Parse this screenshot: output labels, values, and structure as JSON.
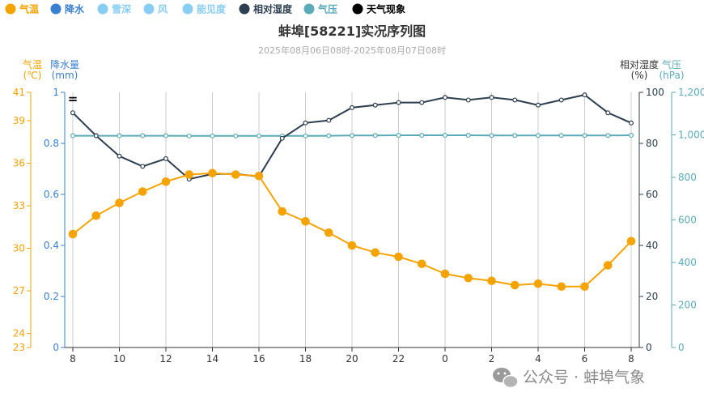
{
  "chart_data": {
    "type": "line",
    "title": "蚌埠[58221]实况序列图",
    "subtitle": "2025年08月06日08时-2025年08月07日08时",
    "legend": {
      "placement": "top-left",
      "items": [
        {
          "name": "气温",
          "color": "#f5a300",
          "icon": "circle-icon"
        },
        {
          "name": "降水",
          "color": "#3a7fd0",
          "icon": "circle-icon"
        },
        {
          "name": "雪深",
          "color": "#88cdf4",
          "icon": "circle-icon"
        },
        {
          "name": "风",
          "color": "#88cdf4",
          "icon": "circle-icon"
        },
        {
          "name": "能见度",
          "color": "#88cdf4",
          "icon": "circle-icon"
        },
        {
          "name": "相对湿度",
          "color": "#2c3e50",
          "icon": "circle-icon"
        },
        {
          "name": "气压",
          "color": "#5aaab8",
          "icon": "circle-icon"
        },
        {
          "name": "天气现象",
          "color": "#000000",
          "icon": "circle-icon"
        }
      ]
    },
    "x_ticks": [
      "8",
      "10",
      "12",
      "14",
      "16",
      "18",
      "20",
      "22",
      "0",
      "2",
      "4",
      "6",
      "8"
    ],
    "axes": {
      "temperature": {
        "name": "气温",
        "unit": "(℃)",
        "color": "#f5a300",
        "ticks": [
          "23",
          "24",
          "27",
          "30",
          "33",
          "36",
          "39",
          "41"
        ],
        "range": [
          23,
          41
        ]
      },
      "precipitation": {
        "name": "降水量",
        "unit": "(mm)",
        "color": "#3a7fd0",
        "ticks": [
          "0",
          "0.2",
          "0.4",
          "0.6",
          "0.8",
          "1"
        ],
        "range": [
          0,
          1
        ]
      },
      "humidity": {
        "name": "相对湿度",
        "unit": "(%)",
        "color": "#333333",
        "ticks": [
          "0",
          "20",
          "40",
          "60",
          "80",
          "100"
        ],
        "range": [
          0,
          100
        ]
      },
      "pressure": {
        "name": "气压",
        "unit": "(hPa)",
        "color": "#5aaab8",
        "ticks": [
          "0",
          "200",
          "400",
          "600",
          "800",
          "1,000",
          "1,200"
        ],
        "range": [
          0,
          1200
        ]
      }
    },
    "series": [
      {
        "name": "气温",
        "axis": "temperature",
        "color": "#f5a300",
        "values": [
          31.0,
          32.3,
          33.2,
          34.0,
          34.7,
          35.2,
          35.3,
          35.2,
          35.1,
          32.6,
          31.9,
          31.1,
          30.2,
          29.7,
          29.4,
          28.9,
          28.2,
          27.9,
          27.7,
          27.4,
          27.5,
          27.3,
          27.3,
          28.8,
          30.5
        ]
      },
      {
        "name": "相对湿度",
        "axis": "humidity",
        "color": "#2c3e50",
        "values": [
          92,
          83,
          75,
          71,
          74,
          66,
          68,
          68,
          67,
          82,
          88,
          89,
          94,
          95,
          96,
          96,
          98,
          97,
          98,
          97,
          95,
          97,
          99,
          92,
          88
        ]
      },
      {
        "name": "气压",
        "axis": "pressure",
        "color": "#5aaab8",
        "values": [
          996,
          996,
          996,
          996,
          996,
          995,
          995,
          995,
          995,
          995,
          995,
          996,
          997,
          997,
          998,
          998,
          998,
          998,
          997,
          997,
          997,
          997,
          997,
          997,
          998
        ]
      }
    ],
    "weather_symbol": {
      "text": "=",
      "hour_index": 0
    }
  },
  "watermark": {
    "text": "公众号 · 蚌埠气象",
    "icon": "wechat-icon"
  }
}
